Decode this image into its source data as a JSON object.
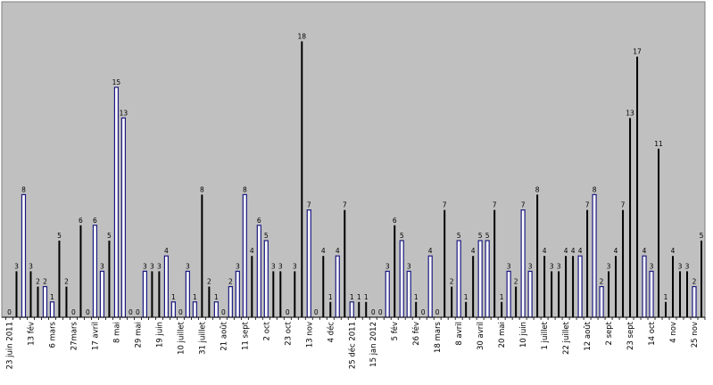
{
  "chart_data": {
    "type": "bar",
    "title": "",
    "xlabel": "",
    "ylabel": "",
    "ylim": [
      0,
      19
    ],
    "grid": false,
    "legend": "none",
    "colors": {
      "plot_bg": "#c0c0c0",
      "bar_fill": "#ffffff",
      "bar_black": "#000000",
      "bar_blue": "#1a1a80",
      "axis": "#000000"
    },
    "values": [
      0,
      3,
      8,
      3,
      2,
      2,
      1,
      5,
      2,
      0,
      6,
      0,
      6,
      3,
      5,
      15,
      13,
      0,
      0,
      3,
      3,
      3,
      4,
      1,
      0,
      3,
      1,
      8,
      2,
      1,
      0,
      2,
      3,
      8,
      4,
      6,
      5,
      3,
      3,
      0,
      3,
      18,
      7,
      0,
      4,
      1,
      4,
      7,
      1,
      1,
      1,
      0,
      0,
      3,
      6,
      5,
      3,
      1,
      0,
      4,
      0,
      7,
      2,
      5,
      1,
      4,
      5,
      5,
      7,
      1,
      3,
      2,
      7,
      3,
      8,
      4,
      3,
      3,
      4,
      4,
      4,
      7,
      8,
      2,
      3,
      4,
      7,
      13,
      17,
      4,
      3,
      11,
      1,
      4,
      3,
      3,
      2,
      5
    ],
    "colors_per_bar": [
      "k",
      "k",
      "b",
      "k",
      "k",
      "b",
      "b",
      "k",
      "k",
      "k",
      "k",
      "k",
      "b",
      "b",
      "k",
      "b",
      "b",
      "k",
      "k",
      "b",
      "k",
      "k",
      "b",
      "b",
      "k",
      "b",
      "b",
      "k",
      "k",
      "b",
      "k",
      "b",
      "b",
      "b",
      "k",
      "b",
      "b",
      "k",
      "k",
      "k",
      "k",
      "k",
      "b",
      "k",
      "k",
      "k",
      "b",
      "k",
      "b",
      "k",
      "k",
      "k",
      "k",
      "b",
      "k",
      "b",
      "b",
      "k",
      "k",
      "b",
      "k",
      "k",
      "k",
      "b",
      "k",
      "k",
      "b",
      "b",
      "k",
      "k",
      "b",
      "k",
      "b",
      "b",
      "k",
      "k",
      "k",
      "k",
      "k",
      "k",
      "b",
      "k",
      "b",
      "b",
      "k",
      "k",
      "k",
      "k",
      "k",
      "b",
      "b",
      "k",
      "k",
      "k",
      "k",
      "k",
      "b",
      "k"
    ],
    "tick_labels": [
      {
        "index": 0,
        "text": "23 juin 2011"
      },
      {
        "index": 3,
        "text": "13 fév"
      },
      {
        "index": 6,
        "text": "6 mars"
      },
      {
        "index": 9,
        "text": "27mars"
      },
      {
        "index": 12,
        "text": "17 avril"
      },
      {
        "index": 15,
        "text": "8 mai"
      },
      {
        "index": 18,
        "text": "29 mai"
      },
      {
        "index": 21,
        "text": "19 juin"
      },
      {
        "index": 24,
        "text": "10 juillet"
      },
      {
        "index": 27,
        "text": "31 juillet"
      },
      {
        "index": 30,
        "text": "21 août"
      },
      {
        "index": 33,
        "text": "11 sept"
      },
      {
        "index": 36,
        "text": "2 oct"
      },
      {
        "index": 39,
        "text": "23 oct"
      },
      {
        "index": 42,
        "text": "13 nov"
      },
      {
        "index": 45,
        "text": "4 déc"
      },
      {
        "index": 48,
        "text": "25 déc 2011"
      },
      {
        "index": 51,
        "text": "15 jan 2012"
      },
      {
        "index": 54,
        "text": "5 fév"
      },
      {
        "index": 57,
        "text": "26 fév"
      },
      {
        "index": 60,
        "text": "18 mars"
      },
      {
        "index": 63,
        "text": "8 avril"
      },
      {
        "index": 66,
        "text": "30 avril"
      },
      {
        "index": 69,
        "text": "20 mai"
      },
      {
        "index": 72,
        "text": "10 juin"
      },
      {
        "index": 75,
        "text": "1 juillet"
      },
      {
        "index": 78,
        "text": "22 juillet"
      },
      {
        "index": 81,
        "text": "12 août"
      },
      {
        "index": 84,
        "text": "2 sept"
      },
      {
        "index": 87,
        "text": "23 sept"
      },
      {
        "index": 90,
        "text": "14 oct"
      },
      {
        "index": 93,
        "text": "4 nov"
      },
      {
        "index": 96,
        "text": "25 nov"
      }
    ]
  }
}
